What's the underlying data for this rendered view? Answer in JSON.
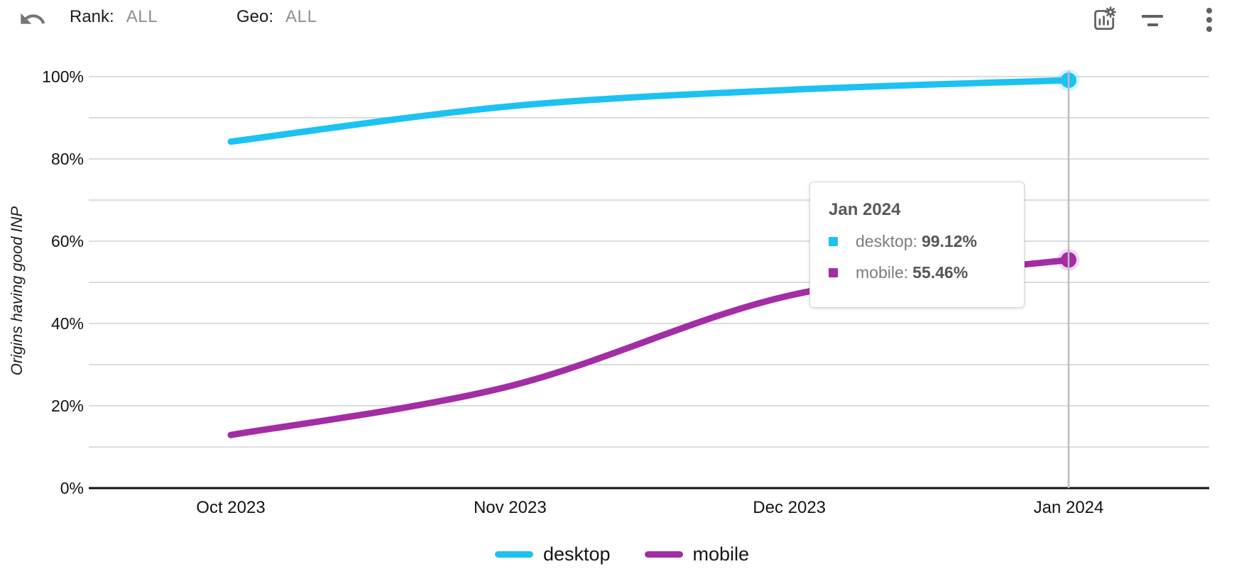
{
  "toolbar": {
    "rank": {
      "label": "Rank:",
      "value": "ALL"
    },
    "geo": {
      "label": "Geo:",
      "value": "ALL"
    },
    "icons": [
      "undo-icon",
      "chart-settings-icon",
      "filter-icon",
      "more-vert-icon"
    ]
  },
  "chart_data": {
    "type": "line",
    "title": "",
    "xlabel": "",
    "ylabel": "Origins having good INP",
    "categories": [
      "Oct 2023",
      "Nov 2023",
      "Dec 2023",
      "Jan 2024"
    ],
    "series": [
      {
        "name": "desktop",
        "color": "#1cc2f2",
        "values": [
          84.2,
          92.8,
          96.8,
          99.12
        ]
      },
      {
        "name": "mobile",
        "color": "#a32da4",
        "values": [
          12.9,
          24.8,
          46.8,
          55.46
        ]
      }
    ],
    "ylim": [
      0,
      100
    ],
    "yticks": [
      "0%",
      "20%",
      "40%",
      "60%",
      "80%",
      "100%"
    ],
    "grid_step": 10,
    "grid_on": true,
    "legend_position": "bottom",
    "highlight_category": "Jan 2024",
    "highlight_index": 3,
    "smooth": true
  },
  "tooltip": {
    "title": "Jan 2024",
    "rows": [
      {
        "series": "desktop",
        "label": "desktop:",
        "value": "99.12%",
        "color": "#1cc2f2"
      },
      {
        "series": "mobile",
        "label": "mobile:",
        "value": "55.46%",
        "color": "#a32da4"
      }
    ]
  },
  "colors": {
    "gridline": "#dcdcdc",
    "axis": "#111111",
    "crosshair": "#bdbdbd",
    "icon": "#616161",
    "muted_text": "#8f8f8f"
  }
}
